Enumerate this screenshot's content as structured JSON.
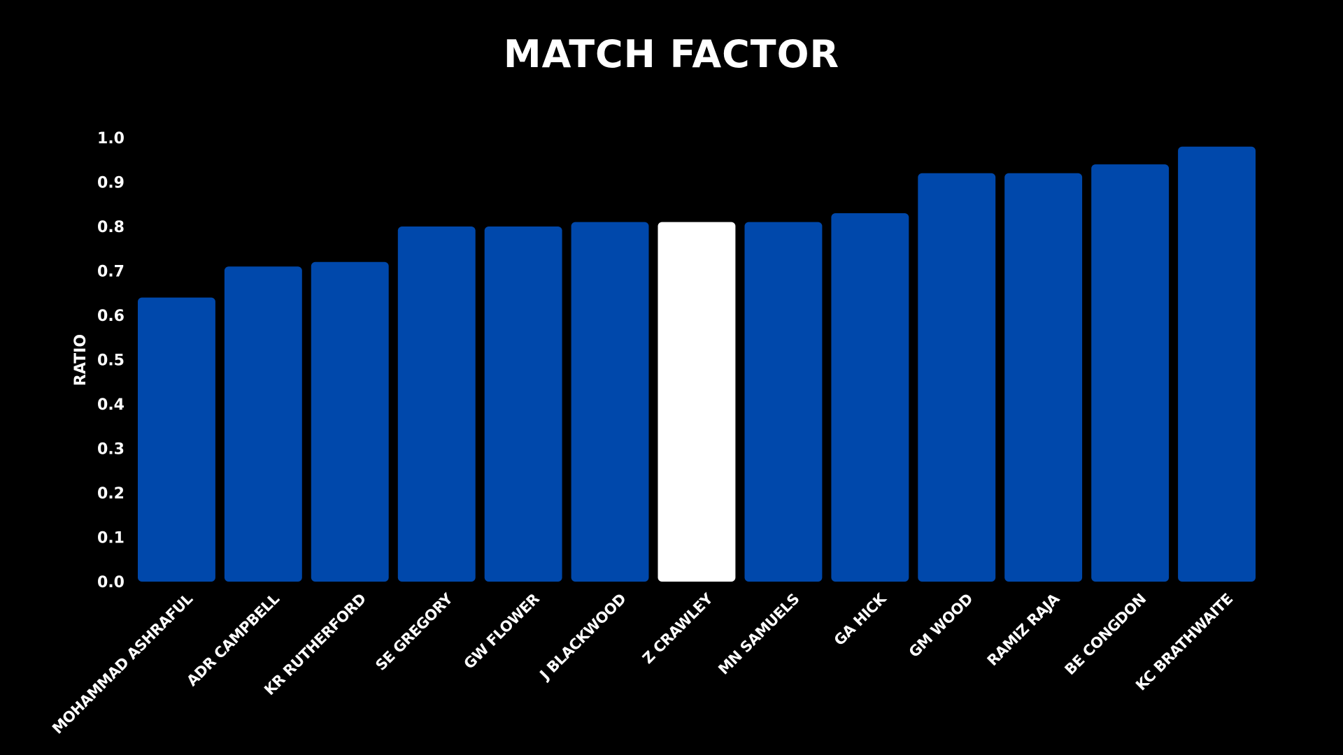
{
  "chart_data": {
    "type": "bar",
    "title": "MATCH FACTOR",
    "xlabel": "",
    "ylabel": "RATIO",
    "ylim": [
      0,
      1.0
    ],
    "yticks": [
      "0.0",
      "0.1",
      "0.2",
      "0.3",
      "0.4",
      "0.5",
      "0.6",
      "0.7",
      "0.8",
      "0.9",
      "1.0"
    ],
    "categories": [
      "MOHAMMAD ASHRAFUL",
      "ADR CAMPBELL",
      "KR RUTHERFORD",
      "SE GREGORY",
      "GW FLOWER",
      "J BLACKWOOD",
      "Z CRAWLEY",
      "MN SAMUELS",
      "GA HICK",
      "GM WOOD",
      "RAMIZ RAJA",
      "BE CONGDON",
      "KC BRATHWAITE"
    ],
    "values": [
      0.64,
      0.71,
      0.72,
      0.8,
      0.8,
      0.81,
      0.81,
      0.81,
      0.83,
      0.92,
      0.92,
      0.94,
      0.98
    ],
    "highlight": "Z CRAWLEY",
    "grid": false,
    "colors": {
      "bar": "#0048ab",
      "highlight": "#ffffff",
      "background": "#000000",
      "text": "#ffffff"
    }
  }
}
